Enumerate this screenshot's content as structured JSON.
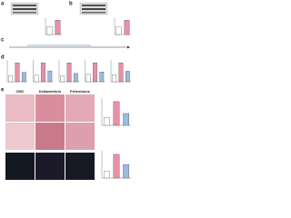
{
  "panel_a": {
    "label": "a",
    "bars": [
      1,
      1.8
    ]
  },
  "panel_b": {
    "label": "b",
    "bars": [
      1,
      1.9
    ]
  },
  "panel_c": {
    "label": "c"
  },
  "panel_d": {
    "label": "d",
    "charts": [
      [
        1,
        3,
        1.5
      ],
      [
        1,
        2.8,
        1.6
      ],
      [
        1,
        3.2,
        1.4
      ],
      [
        1,
        2.5,
        1.3
      ],
      [
        1,
        2.7,
        1.5
      ]
    ]
  },
  "panel_e": {
    "label": "e",
    "columns": [
      "CMC",
      "Deltamethrin",
      "Pirfenidone"
    ],
    "charts": [
      [
        1,
        3,
        1.5
      ],
      [
        1,
        3.5,
        2
      ]
    ]
  }
}
